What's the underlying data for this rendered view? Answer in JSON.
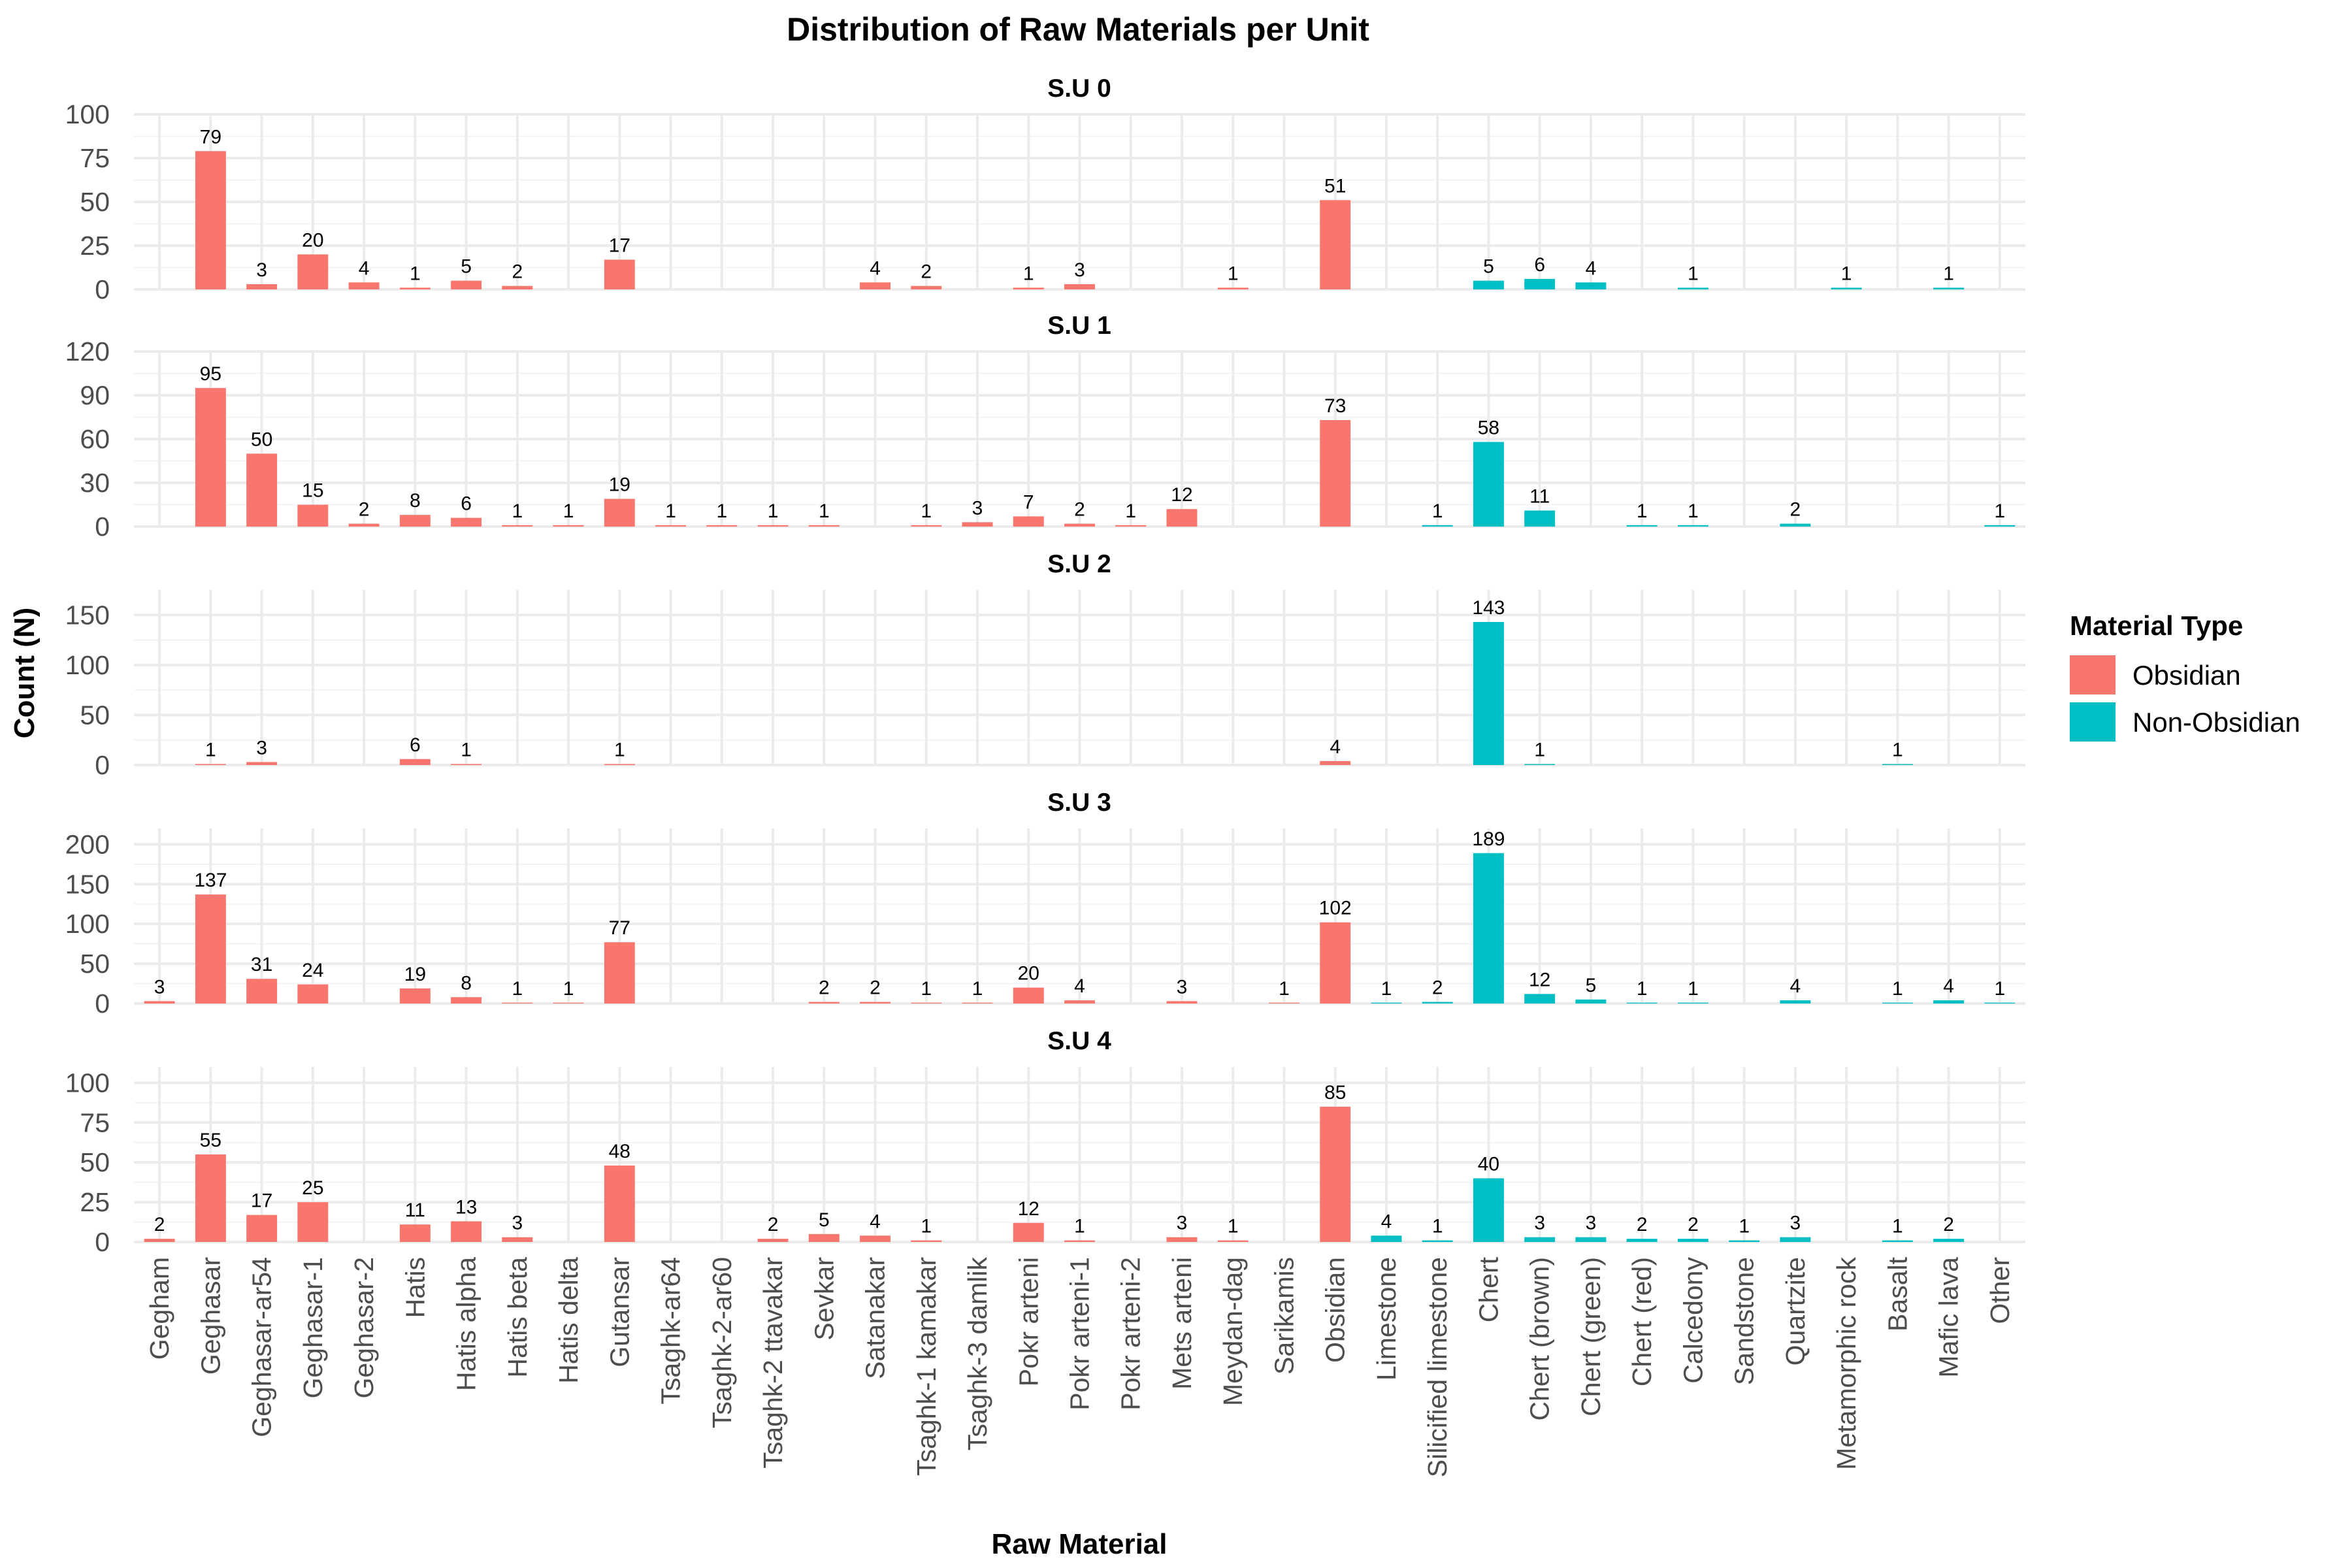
{
  "chart_data": {
    "type": "bar",
    "title": "Distribution of Raw Materials per Unit",
    "xlabel": "Raw Material",
    "ylabel": "Count (N)",
    "grid": true,
    "legend": {
      "title": "Material Type",
      "placement": "right",
      "entries": [
        {
          "name": "Obsidian",
          "color": "#F8766D"
        },
        {
          "name": "Non-Obsidian",
          "color": "#00BFC4"
        }
      ]
    },
    "categories": [
      "Gegham",
      "Geghasar",
      "Geghasar-ar54",
      "Geghasar-1",
      "Geghasar-2",
      "Hatis",
      "Hatis alpha",
      "Hatis beta",
      "Hatis delta",
      "Gutansar",
      "Tsaghk-ar64",
      "Tsaghk-2-ar60",
      "Tsaghk-2 ttavakar",
      "Sevkar",
      "Satanakar",
      "Tsaghk-1 kamakar",
      "Tsaghk-3 damlik",
      "Pokr arteni",
      "Pokr arteni-1",
      "Pokr arteni-2",
      "Mets arteni",
      "Meydan-dag",
      "Sarikamis",
      "Obsidian",
      "Limestone",
      "Silicified limestone",
      "Chert",
      "Chert (brown)",
      "Chert (green)",
      "Chert (red)",
      "Calcedony",
      "Sandstone",
      "Quartzite",
      "Metamorphic rock",
      "Basalt",
      "Mafic lava",
      "Other"
    ],
    "material_type": [
      "Obsidian",
      "Obsidian",
      "Obsidian",
      "Obsidian",
      "Obsidian",
      "Obsidian",
      "Obsidian",
      "Obsidian",
      "Obsidian",
      "Obsidian",
      "Obsidian",
      "Obsidian",
      "Obsidian",
      "Obsidian",
      "Obsidian",
      "Obsidian",
      "Obsidian",
      "Obsidian",
      "Obsidian",
      "Obsidian",
      "Obsidian",
      "Obsidian",
      "Obsidian",
      "Obsidian",
      "Non-Obsidian",
      "Non-Obsidian",
      "Non-Obsidian",
      "Non-Obsidian",
      "Non-Obsidian",
      "Non-Obsidian",
      "Non-Obsidian",
      "Non-Obsidian",
      "Non-Obsidian",
      "Non-Obsidian",
      "Non-Obsidian",
      "Non-Obsidian",
      "Non-Obsidian"
    ],
    "facets": [
      {
        "name": "S.U 0",
        "ylim": [
          0,
          100
        ],
        "yticks": [
          0,
          25,
          50,
          75,
          100
        ],
        "values": [
          null,
          79,
          3,
          20,
          4,
          1,
          5,
          2,
          null,
          17,
          null,
          null,
          null,
          null,
          4,
          2,
          null,
          1,
          3,
          null,
          null,
          1,
          null,
          51,
          null,
          null,
          5,
          6,
          4,
          null,
          1,
          null,
          null,
          1,
          null,
          1,
          null
        ]
      },
      {
        "name": "S.U 1",
        "ylim": [
          0,
          120
        ],
        "yticks": [
          0,
          30,
          60,
          90,
          120
        ],
        "values": [
          null,
          95,
          50,
          15,
          2,
          8,
          6,
          1,
          1,
          19,
          1,
          1,
          1,
          1,
          null,
          1,
          3,
          7,
          2,
          1,
          12,
          null,
          null,
          73,
          null,
          1,
          58,
          11,
          null,
          1,
          1,
          null,
          2,
          null,
          null,
          null,
          1
        ]
      },
      {
        "name": "S.U 2",
        "ylim": [
          0,
          175
        ],
        "yticks": [
          0,
          50,
          100,
          150
        ],
        "values": [
          null,
          1,
          3,
          null,
          null,
          6,
          1,
          null,
          null,
          1,
          null,
          null,
          null,
          null,
          null,
          null,
          null,
          null,
          null,
          null,
          null,
          null,
          null,
          4,
          null,
          null,
          143,
          1,
          null,
          null,
          null,
          null,
          null,
          null,
          1,
          null,
          null
        ]
      },
      {
        "name": "S.U 3",
        "ylim": [
          0,
          220
        ],
        "yticks": [
          0,
          50,
          100,
          150,
          200
        ],
        "values": [
          3,
          137,
          31,
          24,
          null,
          19,
          8,
          1,
          1,
          77,
          null,
          null,
          null,
          2,
          2,
          1,
          1,
          20,
          4,
          null,
          3,
          null,
          1,
          102,
          1,
          2,
          189,
          12,
          5,
          1,
          1,
          null,
          4,
          null,
          1,
          4,
          1
        ]
      },
      {
        "name": "S.U 4",
        "ylim": [
          0,
          110
        ],
        "yticks": [
          0,
          25,
          50,
          75,
          100
        ],
        "values": [
          2,
          55,
          17,
          25,
          null,
          11,
          13,
          3,
          null,
          48,
          null,
          null,
          2,
          5,
          4,
          1,
          null,
          12,
          1,
          null,
          3,
          1,
          null,
          85,
          4,
          1,
          40,
          3,
          3,
          2,
          2,
          1,
          3,
          null,
          1,
          2,
          null
        ]
      }
    ]
  }
}
